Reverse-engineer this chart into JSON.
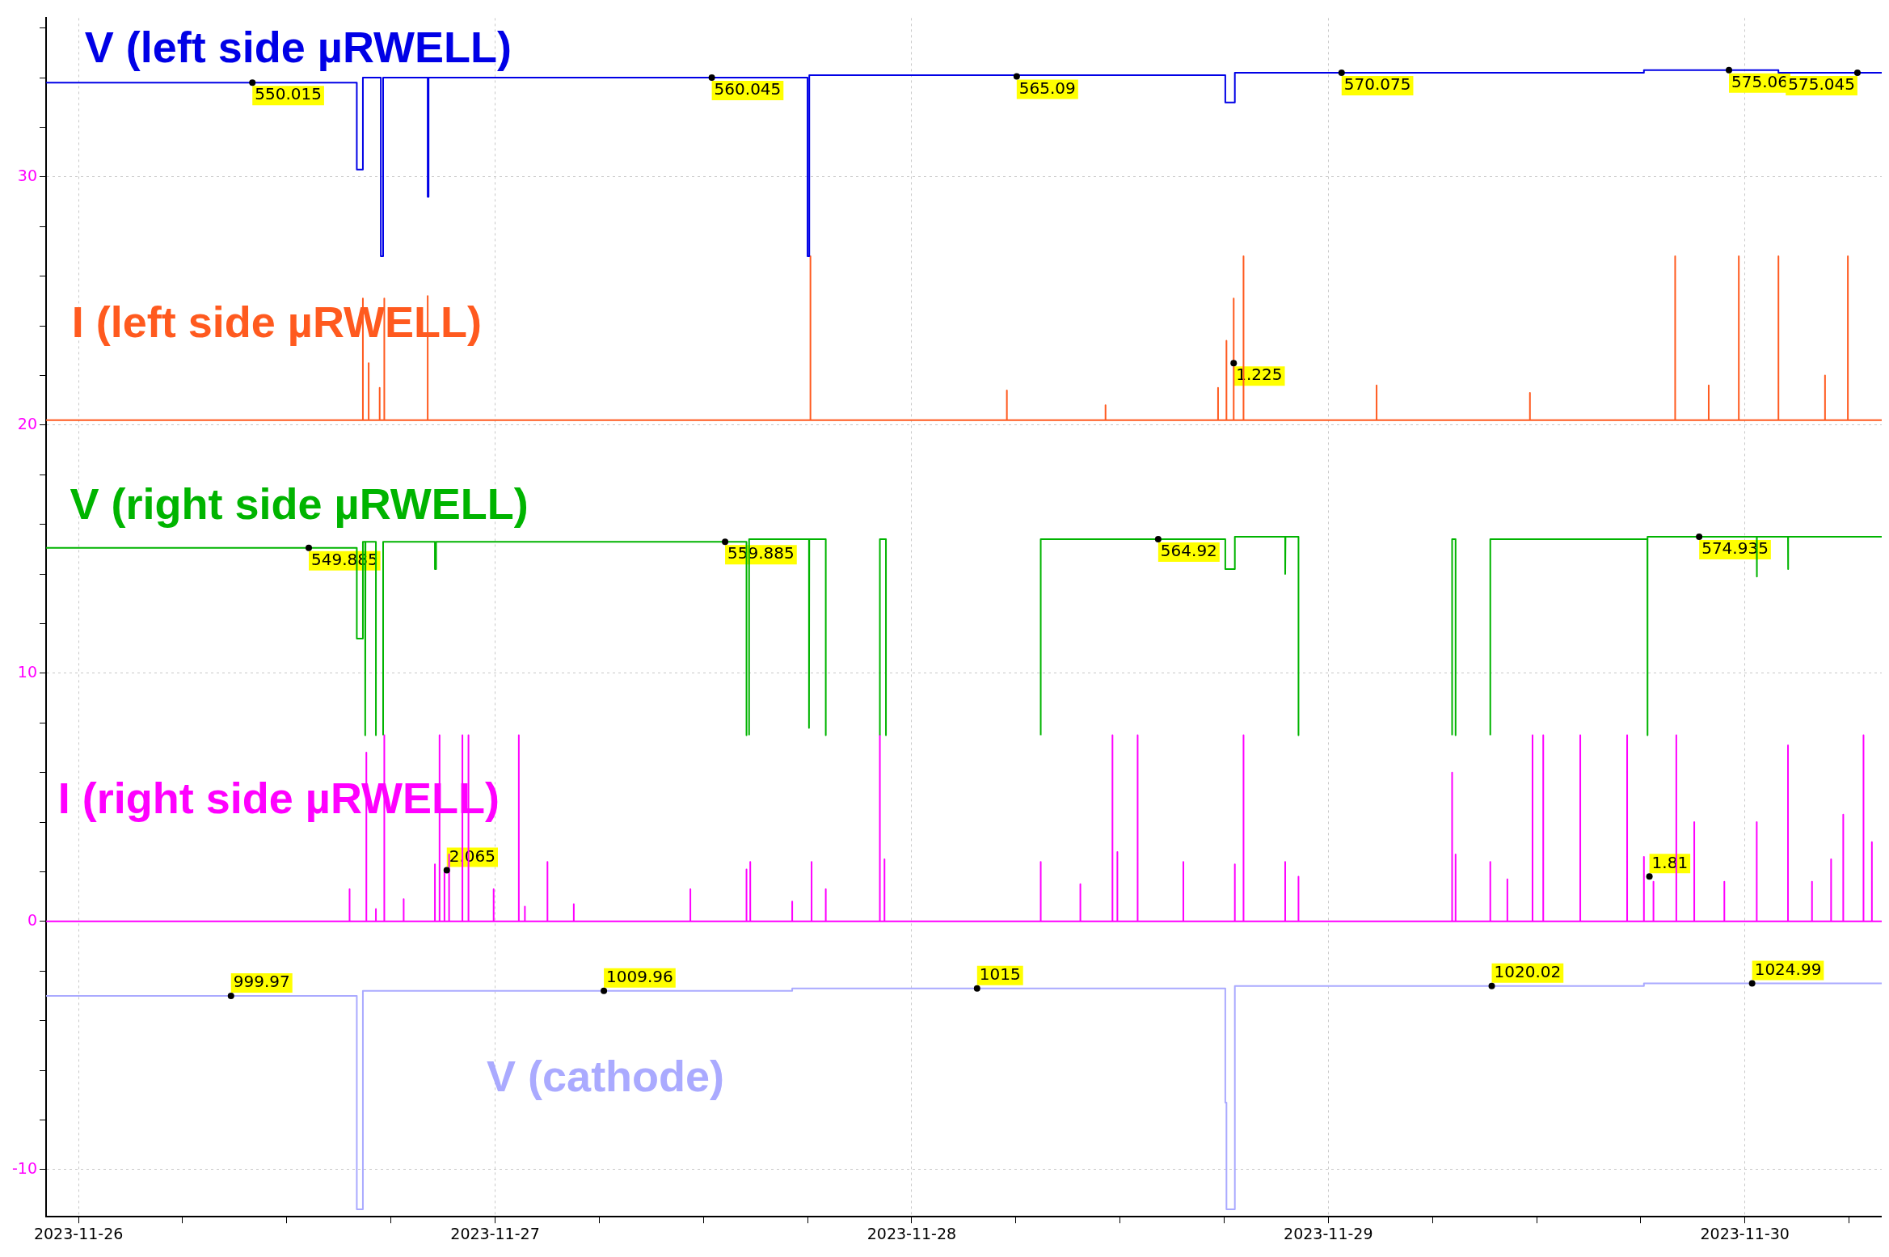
{
  "chart_data": {
    "type": "line",
    "marker": "none",
    "line_style": "solid",
    "grid": true,
    "xlim": [
      "2023-11-25T22:08",
      "2023-11-30T07:53"
    ],
    "ylim": [
      -11.9,
      36.4
    ],
    "xticks": [
      "2023-11-26",
      {
        "value": "2023-11-26T06:00",
        "label": null
      },
      {
        "value": "2023-11-26T12:00",
        "label": null
      },
      {
        "value": "2023-11-26T18:00",
        "label": null
      },
      "2023-11-27",
      {
        "value": "2023-11-27T06:00",
        "label": null
      },
      {
        "value": "2023-11-27T12:00",
        "label": null
      },
      {
        "value": "2023-11-27T18:00",
        "label": null
      },
      "2023-11-28",
      {
        "value": "2023-11-28T06:00",
        "label": null
      },
      {
        "value": "2023-11-28T12:00",
        "label": null
      },
      {
        "value": "2023-11-28T18:00",
        "label": null
      },
      "2023-11-29",
      {
        "value": "2023-11-29T06:00",
        "label": null
      },
      {
        "value": "2023-11-29T12:00",
        "label": null
      },
      {
        "value": "2023-11-29T18:00",
        "label": null
      },
      "2023-11-30",
      {
        "value": "2023-11-30T06:00",
        "label": null
      }
    ],
    "yticks": [
      -10,
      {
        "value": -8,
        "label": null
      },
      {
        "value": -6,
        "label": null
      },
      {
        "value": -4,
        "label": null
      },
      {
        "value": -2,
        "label": null
      },
      0,
      {
        "value": 2,
        "label": null
      },
      {
        "value": 4,
        "label": null
      },
      {
        "value": 6,
        "label": null
      },
      {
        "value": 8,
        "label": null
      },
      10,
      {
        "value": 12,
        "label": null
      },
      {
        "value": 14,
        "label": null
      },
      {
        "value": 16,
        "label": null
      },
      {
        "value": 18,
        "label": null
      },
      20,
      {
        "value": 22,
        "label": null
      },
      {
        "value": 24,
        "label": null
      },
      {
        "value": 26,
        "label": null
      },
      {
        "value": 28,
        "label": null
      },
      30,
      {
        "value": 32,
        "label": null
      },
      {
        "value": 34,
        "label": null
      },
      {
        "value": 36,
        "label": null
      }
    ],
    "series": [
      {
        "name": "V (left side µRWELL)",
        "color": "#0000e6",
        "x": [
          "2023-11-25T22:08",
          "2023-11-26T16:02",
          "2023-11-26T16:02",
          "2023-11-26T16:23",
          "2023-11-26T16:23",
          "2023-11-26T17:25",
          "2023-11-26T17:25",
          "2023-11-26T17:33",
          "2023-11-26T17:33",
          "2023-11-26T20:07",
          "2023-11-26T20:07",
          "2023-11-26T20:10",
          "2023-11-26T20:10",
          "2023-11-27T18:00",
          "2023-11-27T18:00",
          "2023-11-27T18:06",
          "2023-11-27T18:06",
          "2023-11-28T18:04",
          "2023-11-28T18:04",
          "2023-11-28T18:37",
          "2023-11-28T18:37",
          "2023-11-29T18:11",
          "2023-11-29T18:11",
          "2023-11-30T01:56",
          "2023-11-30T01:56",
          "2023-11-30T07:53"
        ],
        "values": [
          33.8,
          33.8,
          30.3,
          30.3,
          34.0,
          34.0,
          26.8,
          26.8,
          34.0,
          34.0,
          29.2,
          29.2,
          34.0,
          34.0,
          26.8,
          26.8,
          34.1,
          34.1,
          33.0,
          33.0,
          34.2,
          34.2,
          34.3,
          34.3,
          34.2,
          34.2
        ]
      },
      {
        "name": "I (left side µRWELL)",
        "color": "#ff5a1f",
        "x": [
          "2023-11-25T22:08",
          "2023-11-26T16:23",
          "2023-11-26T16:23",
          "2023-11-26T16:23",
          "2023-11-26T16:43",
          "2023-11-26T16:43",
          "2023-11-26T16:43",
          "2023-11-26T17:21",
          "2023-11-26T17:21",
          "2023-11-26T17:21",
          "2023-11-26T17:37",
          "2023-11-26T17:37",
          "2023-11-26T17:37",
          "2023-11-26T20:07",
          "2023-11-26T20:07",
          "2023-11-26T20:07",
          "2023-11-27T18:10",
          "2023-11-27T18:10",
          "2023-11-27T18:10",
          "2023-11-28T05:29",
          "2023-11-28T05:29",
          "2023-11-28T05:29",
          "2023-11-28T11:10",
          "2023-11-28T11:10",
          "2023-11-28T11:10",
          "2023-11-28T17:39",
          "2023-11-28T17:39",
          "2023-11-28T17:39",
          "2023-11-28T18:08",
          "2023-11-28T18:08",
          "2023-11-28T18:08",
          "2023-11-28T18:33",
          "2023-11-28T18:33",
          "2023-11-28T18:33",
          "2023-11-28T19:07",
          "2023-11-28T19:07",
          "2023-11-28T19:07",
          "2023-11-29T02:47",
          "2023-11-29T02:47",
          "2023-11-29T02:47",
          "2023-11-29T11:37",
          "2023-11-29T11:37",
          "2023-11-29T11:37",
          "2023-11-29T19:59",
          "2023-11-29T19:59",
          "2023-11-29T19:59",
          "2023-11-29T21:55",
          "2023-11-29T21:55",
          "2023-11-29T21:55",
          "2023-11-29T23:39",
          "2023-11-29T23:39",
          "2023-11-29T23:39",
          "2023-11-30T01:56",
          "2023-11-30T01:56",
          "2023-11-30T01:56",
          "2023-11-30T04:37",
          "2023-11-30T04:37",
          "2023-11-30T04:37",
          "2023-11-30T05:56",
          "2023-11-30T05:56",
          "2023-11-30T05:56",
          "2023-11-30T07:53"
        ],
        "values": [
          20.2,
          20.2,
          25.1,
          20.2,
          20.2,
          22.5,
          20.2,
          20.2,
          21.5,
          20.2,
          20.2,
          25.1,
          20.2,
          20.2,
          25.2,
          20.2,
          20.2,
          26.8,
          20.2,
          20.2,
          21.4,
          20.2,
          20.2,
          20.8,
          20.2,
          20.2,
          21.5,
          20.2,
          20.2,
          23.4,
          20.2,
          20.2,
          25.1,
          20.2,
          20.2,
          26.8,
          20.2,
          20.2,
          21.6,
          20.2,
          20.2,
          21.3,
          20.2,
          20.2,
          26.8,
          20.2,
          20.2,
          21.6,
          20.2,
          20.2,
          26.8,
          20.2,
          20.2,
          26.8,
          20.2,
          20.2,
          22.0,
          20.2,
          20.2,
          26.8,
          20.2,
          20.2
        ]
      },
      {
        "name": "V (right side µRWELL)",
        "color": "#00b400",
        "x": [
          "2023-11-25T22:08",
          "2023-11-26T16:02",
          "2023-11-26T16:02",
          "2023-11-26T16:23",
          "2023-11-26T16:23",
          "2023-11-26T16:31",
          "2023-11-26T16:31",
          "2023-11-26T16:32",
          "2023-11-26T17:08",
          "2023-11-26T17:08",
          "2023-11-26T17:10",
          "2023-11-26T17:33",
          "2023-11-26T17:33",
          "2023-11-26T20:32",
          "2023-11-26T20:32",
          "2023-11-26T20:36",
          "2023-11-26T20:36",
          "2023-11-27T14:29",
          "2023-11-27T14:29",
          "2023-11-27T14:33",
          "2023-11-27T14:38",
          "2023-11-27T14:38",
          "2023-11-27T18:05",
          "2023-11-27T18:05",
          "2023-11-27T18:06",
          "2023-11-27T19:03",
          "2023-11-27T19:03",
          "2023-11-27T19:05",
          "2023-11-27T22:10",
          "2023-11-27T22:10",
          "2023-11-27T22:31",
          "2023-11-27T22:31",
          "2023-11-27T22:33",
          "2023-11-28T07:26",
          "2023-11-28T07:26",
          "2023-11-28T18:04",
          "2023-11-28T18:04",
          "2023-11-28T18:37",
          "2023-11-28T18:37",
          "2023-11-28T21:31",
          "2023-11-28T21:31",
          "2023-11-28T21:32",
          "2023-11-28T22:17",
          "2023-11-28T22:17",
          "2023-11-28T22:19",
          "2023-11-29T07:08",
          "2023-11-29T07:08",
          "2023-11-29T07:20",
          "2023-11-29T07:20",
          "2023-11-29T07:22",
          "2023-11-29T09:20",
          "2023-11-29T09:20",
          "2023-11-29T18:23",
          "2023-11-29T18:23",
          "2023-11-29T18:24",
          "2023-11-30T00:41",
          "2023-11-30T00:41",
          "2023-11-30T00:42",
          "2023-11-30T02:29",
          "2023-11-30T02:29",
          "2023-11-30T02:30",
          "2023-11-30T07:53"
        ],
        "values": [
          15.05,
          15.05,
          11.4,
          11.4,
          15.3,
          15.3,
          7.5,
          15.3,
          15.3,
          7.5,
          null,
          7.5,
          15.3,
          15.3,
          14.2,
          14.2,
          15.3,
          15.3,
          7.5,
          null,
          7.5,
          15.4,
          15.4,
          7.8,
          15.4,
          15.4,
          7.5,
          null,
          7.5,
          15.4,
          15.4,
          7.5,
          null,
          7.5,
          15.4,
          15.4,
          14.2,
          14.2,
          15.5,
          15.5,
          14.0,
          15.5,
          15.5,
          7.5,
          null,
          7.5,
          15.4,
          15.4,
          7.5,
          null,
          7.5,
          15.4,
          15.4,
          7.5,
          15.5,
          15.5,
          13.9,
          15.5,
          15.5,
          14.2,
          15.5,
          15.5
        ]
      },
      {
        "name": "I (right side µRWELL)",
        "color": "#ff00ff",
        "x": [
          "2023-11-25T22:08",
          "2023-11-26T15:37",
          "2023-11-26T15:37",
          "2023-11-26T15:37",
          "2023-11-26T16:35",
          "2023-11-26T16:35",
          "2023-11-26T16:35",
          "2023-11-26T17:08",
          "2023-11-26T17:08",
          "2023-11-26T17:08",
          "2023-11-26T17:37",
          "2023-11-26T17:37",
          "2023-11-26T17:37",
          "2023-11-26T18:44",
          "2023-11-26T18:44",
          "2023-11-26T18:44",
          "2023-11-26T20:32",
          "2023-11-26T20:32",
          "2023-11-26T20:32",
          "2023-11-26T20:48",
          "2023-11-26T20:48",
          "2023-11-26T20:48",
          "2023-11-26T21:05",
          "2023-11-26T21:05",
          "2023-11-26T21:05",
          "2023-11-26T21:21",
          "2023-11-26T21:21",
          "2023-11-26T21:21",
          "2023-11-26T22:07",
          "2023-11-26T22:07",
          "2023-11-26T22:07",
          "2023-11-26T22:28",
          "2023-11-26T22:28",
          "2023-11-26T22:28",
          "2023-11-26T23:55",
          "2023-11-26T23:55",
          "2023-11-26T23:55",
          "2023-11-27T01:22",
          "2023-11-27T01:22",
          "2023-11-27T01:22",
          "2023-11-27T01:43",
          "2023-11-27T01:43",
          "2023-11-27T01:43",
          "2023-11-27T03:01",
          "2023-11-27T03:01",
          "2023-11-27T03:01",
          "2023-11-27T04:32",
          "2023-11-27T04:32",
          "2023-11-27T04:32",
          "2023-11-27T11:15",
          "2023-11-27T11:15",
          "2023-11-27T11:15",
          "2023-11-27T14:29",
          "2023-11-27T14:29",
          "2023-11-27T14:29",
          "2023-11-27T14:42",
          "2023-11-27T14:42",
          "2023-11-27T14:42",
          "2023-11-27T17:07",
          "2023-11-27T17:07",
          "2023-11-27T17:07",
          "2023-11-27T18:14",
          "2023-11-27T18:14",
          "2023-11-27T18:14",
          "2023-11-27T19:03",
          "2023-11-27T19:03",
          "2023-11-27T19:03",
          "2023-11-27T22:10",
          "2023-11-27T22:10",
          "2023-11-27T22:10",
          "2023-11-27T22:26",
          "2023-11-27T22:26",
          "2023-11-27T22:26",
          "2023-11-28T07:26",
          "2023-11-28T07:26",
          "2023-11-28T07:26",
          "2023-11-28T09:43",
          "2023-11-28T09:43",
          "2023-11-28T09:43",
          "2023-11-28T11:34",
          "2023-11-28T11:34",
          "2023-11-28T11:34",
          "2023-11-28T11:51",
          "2023-11-28T11:51",
          "2023-11-28T11:51",
          "2023-11-28T13:01",
          "2023-11-28T13:01",
          "2023-11-28T13:01",
          "2023-11-28T15:39",
          "2023-11-28T15:39",
          "2023-11-28T15:39",
          "2023-11-28T18:37",
          "2023-11-28T18:37",
          "2023-11-28T18:37",
          "2023-11-28T19:07",
          "2023-11-28T19:07",
          "2023-11-28T19:07",
          "2023-11-28T21:31",
          "2023-11-28T21:31",
          "2023-11-28T21:31",
          "2023-11-28T22:17",
          "2023-11-28T22:17",
          "2023-11-28T22:17",
          "2023-11-29T07:08",
          "2023-11-29T07:08",
          "2023-11-29T07:08",
          "2023-11-29T07:20",
          "2023-11-29T07:20",
          "2023-11-29T07:20",
          "2023-11-29T09:20",
          "2023-11-29T09:20",
          "2023-11-29T09:20",
          "2023-11-29T10:19",
          "2023-11-29T10:19",
          "2023-11-29T10:19",
          "2023-11-29T11:46",
          "2023-11-29T11:46",
          "2023-11-29T11:46",
          "2023-11-29T12:23",
          "2023-11-29T12:23",
          "2023-11-29T12:23",
          "2023-11-29T14:31",
          "2023-11-29T14:31",
          "2023-11-29T14:31",
          "2023-11-29T17:13",
          "2023-11-29T17:13",
          "2023-11-29T17:13",
          "2023-11-29T18:11",
          "2023-11-29T18:11",
          "2023-11-29T18:11",
          "2023-11-29T18:44",
          "2023-11-29T18:44",
          "2023-11-29T18:44",
          "2023-11-29T20:03",
          "2023-11-29T20:03",
          "2023-11-29T20:03",
          "2023-11-29T21:05",
          "2023-11-29T21:05",
          "2023-11-29T21:05",
          "2023-11-29T22:49",
          "2023-11-29T22:49",
          "2023-11-29T22:49",
          "2023-11-30T00:41",
          "2023-11-30T00:41",
          "2023-11-30T00:41",
          "2023-11-30T02:29",
          "2023-11-30T02:29",
          "2023-11-30T02:29",
          "2023-11-30T03:52",
          "2023-11-30T03:52",
          "2023-11-30T03:52",
          "2023-11-30T04:58",
          "2023-11-30T04:58",
          "2023-11-30T04:58",
          "2023-11-30T05:40",
          "2023-11-30T05:40",
          "2023-11-30T05:40",
          "2023-11-30T06:50",
          "2023-11-30T06:50",
          "2023-11-30T06:50",
          "2023-11-30T07:19",
          "2023-11-30T07:19",
          "2023-11-30T07:19",
          "2023-11-30T07:53"
        ],
        "values": [
          0,
          0,
          1.3,
          0,
          0,
          6.8,
          0,
          0,
          0.5,
          0,
          0,
          7.5,
          0,
          0,
          0.9,
          0,
          0,
          2.3,
          0,
          0,
          7.5,
          0,
          0,
          2.0,
          0,
          0,
          2.7,
          0,
          0,
          7.5,
          0,
          0,
          7.5,
          0,
          0,
          1.3,
          0,
          0,
          7.5,
          0,
          0,
          0.6,
          0,
          0,
          2.4,
          0,
          0,
          0.7,
          0,
          0,
          1.3,
          0,
          0,
          2.1,
          0,
          0,
          2.4,
          0,
          0,
          0.8,
          0,
          0,
          2.4,
          0,
          0,
          1.3,
          0,
          0,
          7.5,
          0,
          0,
          2.5,
          0,
          0,
          2.4,
          0,
          0,
          1.5,
          0,
          0,
          7.5,
          0,
          0,
          2.8,
          0,
          0,
          7.5,
          0,
          0,
          2.4,
          0,
          0,
          2.3,
          0,
          0,
          7.5,
          0,
          0,
          2.4,
          0,
          0,
          1.8,
          0,
          0,
          6.0,
          0,
          0,
          2.7,
          0,
          0,
          2.4,
          0,
          0,
          1.7,
          0,
          0,
          7.5,
          0,
          0,
          7.5,
          0,
          0,
          7.5,
          0,
          0,
          7.5,
          0,
          0,
          2.6,
          0,
          0,
          1.6,
          0,
          0,
          7.5,
          0,
          0,
          4.0,
          0,
          0,
          1.6,
          0,
          0,
          4.0,
          0,
          0,
          7.1,
          0,
          0,
          1.6,
          0,
          0,
          2.5,
          0,
          0,
          4.3,
          0,
          0,
          7.5,
          0,
          0,
          3.2,
          0,
          0
        ]
      },
      {
        "name": "V (cathode)",
        "color": "#aaaaff",
        "x": [
          "2023-11-25T22:08",
          "2023-11-26T16:02",
          "2023-11-26T16:02",
          "2023-11-26T16:23",
          "2023-11-26T16:23",
          "2023-11-27T17:07",
          "2023-11-27T17:07",
          "2023-11-28T18:04",
          "2023-11-28T18:04",
          "2023-11-28T18:08",
          "2023-11-28T18:08",
          "2023-11-28T18:37",
          "2023-11-28T18:37",
          "2023-11-29T18:11",
          "2023-11-29T18:11",
          "2023-11-30T07:53"
        ],
        "values": [
          -3.0,
          -3.0,
          -11.6,
          -11.6,
          -2.8,
          -2.8,
          -2.7,
          -2.7,
          -7.3,
          -7.3,
          -11.6,
          -11.6,
          -2.6,
          -2.6,
          -2.5,
          -2.5
        ]
      }
    ],
    "annotations": [
      {
        "text": "550.015",
        "x": "2023-11-26T10:01",
        "y": 33.8
      },
      {
        "text": "560.045",
        "x": "2023-11-27T12:29",
        "y": 34.0
      },
      {
        "text": "565.09",
        "x": "2023-11-28T06:03",
        "y": 34.05
      },
      {
        "text": "570.075",
        "x": "2023-11-29T00:46",
        "y": 34.2
      },
      {
        "text": "575.06",
        "x": "2023-11-29T23:05",
        "y": 34.3
      },
      {
        "text": "575.045",
        "x": "2023-11-30T06:29",
        "y": 34.2
      },
      {
        "text": "1.225",
        "x": "2023-11-28T18:33",
        "y": 22.5
      },
      {
        "text": "549.885",
        "x": "2023-11-26T13:16",
        "y": 15.05
      },
      {
        "text": "559.885",
        "x": "2023-11-27T13:15",
        "y": 15.3
      },
      {
        "text": "564.92",
        "x": "2023-11-28T14:12",
        "y": 15.4
      },
      {
        "text": "574.935",
        "x": "2023-11-29T21:22",
        "y": 15.5
      },
      {
        "text": "2.065",
        "x": "2023-11-26T21:13",
        "y": 2.065
      },
      {
        "text": "1.81",
        "x": "2023-11-29T18:30",
        "y": 1.81
      },
      {
        "text": "999.97",
        "x": "2023-11-26T08:47",
        "y": -3.0
      },
      {
        "text": "1009.96",
        "x": "2023-11-27T06:16",
        "y": -2.8
      },
      {
        "text": "1015",
        "x": "2023-11-28T03:46",
        "y": -2.7
      },
      {
        "text": "1020.02",
        "x": "2023-11-29T09:25",
        "y": -2.6
      },
      {
        "text": "1024.99",
        "x": "2023-11-30T00:25",
        "y": -2.5
      }
    ]
  }
}
